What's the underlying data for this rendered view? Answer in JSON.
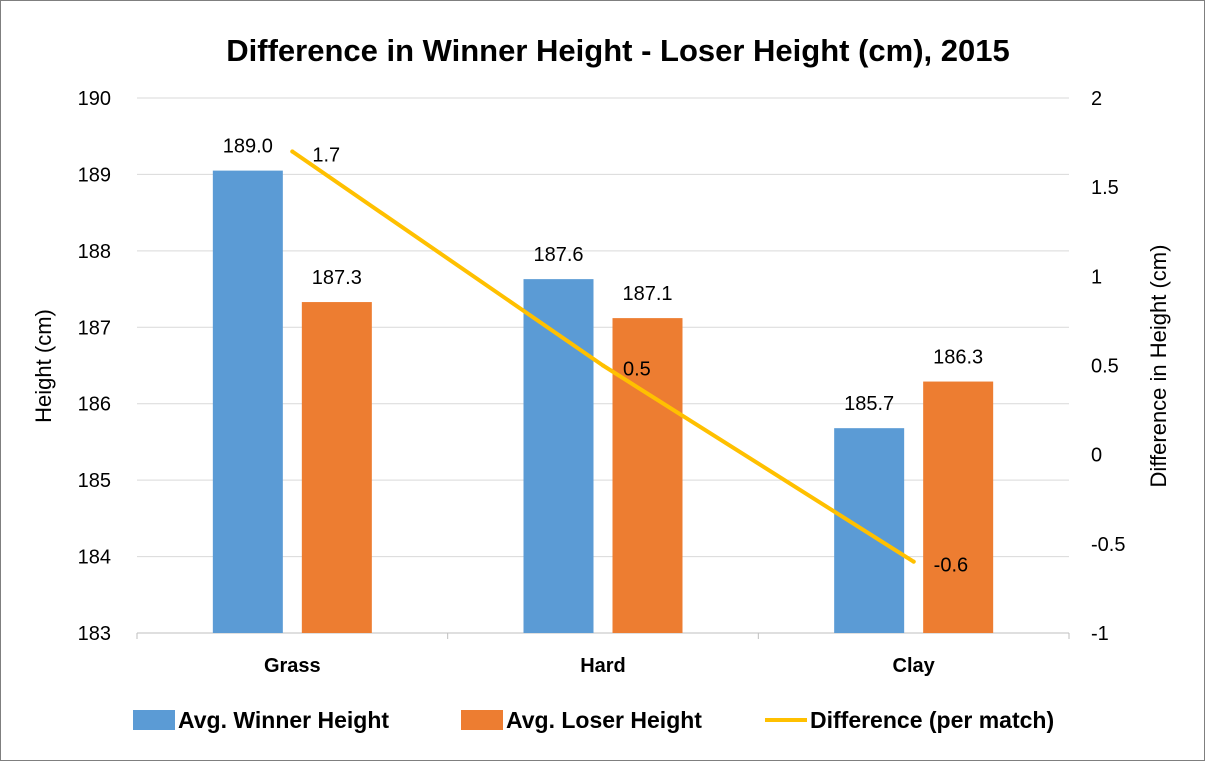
{
  "chart_data": {
    "type": "bar",
    "title": "Difference in Winner Height - Loser Height (cm), 2015",
    "categories": [
      "Grass",
      "Hard",
      "Clay"
    ],
    "ylabel": "Height (cm)",
    "ylim": [
      183,
      190
    ],
    "yticks": [
      "183",
      "184",
      "185",
      "186",
      "187",
      "188",
      "189",
      "190"
    ],
    "y2label": "Difference in Height (cm)",
    "y2lim": [
      -1,
      2
    ],
    "y2ticks": [
      "-1",
      "-0.5",
      "0",
      "0.5",
      "1",
      "1.5",
      "2"
    ],
    "grid": true,
    "legend_position": "bottom",
    "series": [
      {
        "name": "Avg. Winner Height",
        "type": "bar",
        "axis": "left",
        "color": "#5B9BD5",
        "values": [
          189.05,
          187.63,
          185.68
        ],
        "labels": [
          "189.0",
          "187.6",
          "185.7"
        ]
      },
      {
        "name": "Avg. Loser Height",
        "type": "bar",
        "axis": "left",
        "color": "#ED7D31",
        "values": [
          187.33,
          187.12,
          186.29
        ],
        "labels": [
          "187.3",
          "187.1",
          "186.3"
        ]
      },
      {
        "name": "Difference (per match)",
        "type": "line",
        "axis": "right",
        "color": "#FFC000",
        "values": [
          1.7,
          0.5,
          -0.6
        ],
        "labels": [
          "1.7",
          "0.5",
          "-0.6"
        ]
      }
    ]
  }
}
